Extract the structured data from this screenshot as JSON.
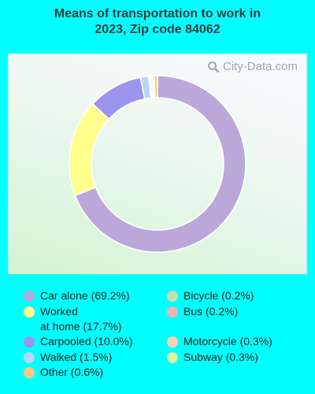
{
  "title": "Means of transportation to work in\n2023, Zip code 84062",
  "watermark": "City-Data.com",
  "chart_data": {
    "type": "pie",
    "title": "Means of transportation to work in 2023, Zip code 84062",
    "categories": [
      "Car alone",
      "Worked at home",
      "Carpooled",
      "Walked",
      "Other",
      "Bicycle",
      "Bus",
      "Motorcycle",
      "Subway"
    ],
    "values": [
      69.2,
      17.7,
      10.0,
      1.5,
      0.6,
      0.2,
      0.2,
      0.3,
      0.3
    ],
    "chart_order": [
      "Car alone",
      "Worked at home",
      "Carpooled",
      "Walked",
      "Bicycle",
      "Bus",
      "Motorcycle",
      "Subway",
      "Other"
    ],
    "colors": {
      "Car alone": "#bba7d9",
      "Worked at home": "#fefe8b",
      "Carpooled": "#9a95ef",
      "Walked": "#b7d6fb",
      "Other": "#fdc97e",
      "Bicycle": "#c6dfb1",
      "Bus": "#f3b2b2",
      "Motorcycle": "#fad4b6",
      "Subway": "#d8f4a0"
    },
    "legend": [
      {
        "label": "Car alone (69.2%)",
        "key": "Car alone"
      },
      {
        "label": "Worked\nat home (17.7%)",
        "key": "Worked at home"
      },
      {
        "label": "Carpooled (10.0%)",
        "key": "Carpooled"
      },
      {
        "label": "Walked (1.5%)",
        "key": "Walked"
      },
      {
        "label": "Other (0.6%)",
        "key": "Other"
      },
      {
        "label": "Bicycle (0.2%)",
        "key": "Bicycle"
      },
      {
        "label": "Bus (0.2%)",
        "key": "Bus"
      },
      {
        "label": "Motorcycle (0.3%)",
        "key": "Motorcycle"
      },
      {
        "label": "Subway (0.3%)",
        "key": "Subway"
      }
    ],
    "legend_placement": "bottom",
    "donut": true
  }
}
